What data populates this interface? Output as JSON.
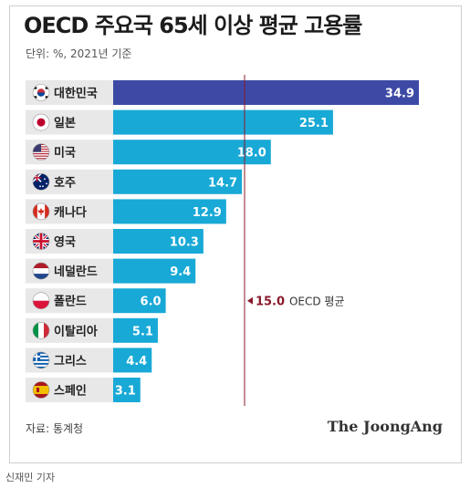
{
  "header": {
    "title": "OECD 주요국 65세 이상 평균 고용률",
    "subtitle": "단위: %, 2021년 기준"
  },
  "footer": {
    "source": "자료: 통계청",
    "brand": "The JoongAng",
    "credit": "신재민 기자"
  },
  "chart_data": {
    "type": "bar",
    "orientation": "horizontal",
    "categories": [
      "대한민국",
      "일본",
      "미국",
      "호주",
      "캐나다",
      "영국",
      "네덜란드",
      "폴란드",
      "이탈리아",
      "그리스",
      "스페인"
    ],
    "values": [
      34.9,
      25.1,
      18.0,
      14.7,
      12.9,
      10.3,
      9.4,
      6.0,
      5.1,
      4.4,
      3.1
    ],
    "value_labels": [
      "34.9",
      "25.1",
      "18.0",
      "14.7",
      "12.9",
      "10.3",
      "9.4",
      "6.0",
      "5.1",
      "4.4",
      "3.1"
    ],
    "flags": [
      "korea-flag-icon",
      "japan-flag-icon",
      "usa-flag-icon",
      "australia-flag-icon",
      "canada-flag-icon",
      "uk-flag-icon",
      "netherlands-flag-icon",
      "poland-flag-icon",
      "italy-flag-icon",
      "greece-flag-icon",
      "spain-flag-icon"
    ],
    "highlight_index": 0,
    "reference_line": {
      "value": 15.0,
      "value_label": "15.0",
      "text": "OECD 평균"
    },
    "xlim": [
      0,
      34.9
    ],
    "grid": false,
    "colors": {
      "highlight": "#3d4aa5",
      "bar": "#18a9d6",
      "label_panel": "#e8e8e8",
      "reference": "#8a1a2c"
    }
  }
}
